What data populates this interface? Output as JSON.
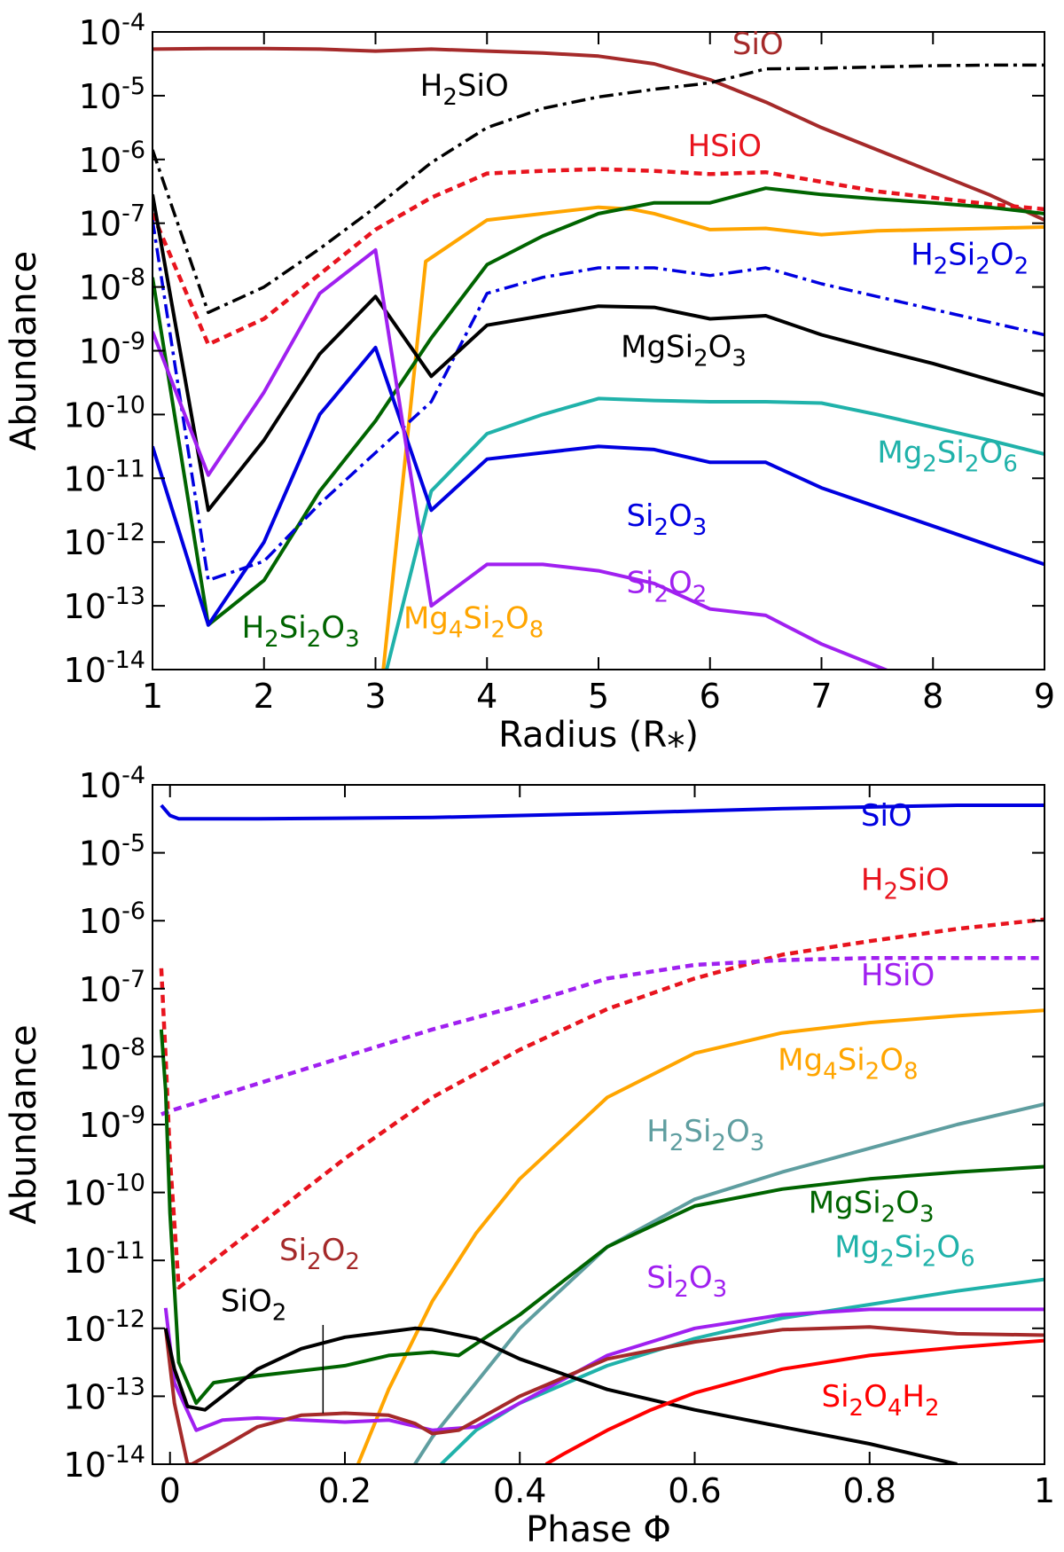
{
  "chart_data": [
    {
      "type": "line",
      "title": "",
      "xlabel": "Radius (R⁎)",
      "ylabel": "Abundance",
      "xlim": [
        1,
        9
      ],
      "ylim_log10": [
        -14,
        -4
      ],
      "yscale": "log",
      "grid": false,
      "x_ticks": [
        "1",
        "2",
        "3",
        "4",
        "5",
        "6",
        "7",
        "8",
        "9"
      ],
      "y_ticks": [
        {
          "base": "10",
          "exp": "-4"
        },
        {
          "base": "10",
          "exp": "-5"
        },
        {
          "base": "10",
          "exp": "-6"
        },
        {
          "base": "10",
          "exp": "-7"
        },
        {
          "base": "10",
          "exp": "-8"
        },
        {
          "base": "10",
          "exp": "-9"
        },
        {
          "base": "10",
          "exp": "-10"
        },
        {
          "base": "10",
          "exp": "-11"
        },
        {
          "base": "10",
          "exp": "-12"
        },
        {
          "base": "10",
          "exp": "-13"
        },
        {
          "base": "10",
          "exp": "-14"
        }
      ],
      "series": [
        {
          "name": "SiO",
          "color": "#a52a2a",
          "style": "solid",
          "x": [
            1,
            1.5,
            2,
            2.5,
            3,
            3.5,
            4,
            4.5,
            5,
            5.5,
            6,
            6.5,
            7,
            7.5,
            8,
            8.5,
            9
          ],
          "log_y": [
            -4.27,
            -4.26,
            -4.26,
            -4.27,
            -4.3,
            -4.27,
            -4.3,
            -4.33,
            -4.38,
            -4.5,
            -4.75,
            -5.1,
            -5.5,
            -5.85,
            -6.2,
            -6.55,
            -6.95
          ]
        },
        {
          "name": "H2SiO",
          "color": "#000000",
          "style": "dashdot",
          "x": [
            1,
            1.5,
            2,
            2.5,
            3,
            3.5,
            4,
            4.5,
            5,
            5.5,
            6,
            6.5,
            7,
            7.5,
            8,
            8.5,
            9
          ],
          "log_y": [
            -5.85,
            -8.4,
            -8.0,
            -7.4,
            -6.75,
            -6.05,
            -5.5,
            -5.2,
            -5.02,
            -4.9,
            -4.8,
            -4.58,
            -4.57,
            -4.55,
            -4.53,
            -4.52,
            -4.52
          ]
        },
        {
          "name": "HSiO",
          "color": "#e8141e",
          "style": "dotted",
          "x": [
            1,
            1.5,
            2,
            2.5,
            3,
            3.5,
            4,
            4.5,
            5,
            5.5,
            6,
            6.5,
            7,
            7.5,
            8,
            8.5,
            9
          ],
          "log_y": [
            -6.85,
            -8.9,
            -8.5,
            -7.8,
            -7.1,
            -6.6,
            -6.22,
            -6.18,
            -6.15,
            -6.18,
            -6.23,
            -6.2,
            -6.35,
            -6.5,
            -6.6,
            -6.7,
            -6.78
          ]
        },
        {
          "name": "Mg4Si2O8",
          "color": "#ffa500",
          "style": "solid",
          "x": [
            3.07,
            3.45,
            4,
            4.5,
            5,
            5.3,
            5.5,
            6,
            6.5,
            7,
            7.5,
            8,
            8.5,
            9
          ],
          "log_y": [
            -14,
            -7.6,
            -6.95,
            -6.85,
            -6.75,
            -6.78,
            -6.85,
            -7.1,
            -7.08,
            -7.18,
            -7.12,
            -7.1,
            -7.08,
            -7.06
          ]
        },
        {
          "name": "H2Si2O3",
          "color": "#006400",
          "style": "solid",
          "x": [
            1,
            1.5,
            2,
            2.5,
            3,
            3.5,
            4,
            4.5,
            5,
            5.5,
            6,
            6.5,
            7,
            7.5,
            8,
            8.5,
            9
          ],
          "log_y": [
            -7.85,
            -13.3,
            -12.6,
            -11.2,
            -10.1,
            -8.8,
            -7.65,
            -7.2,
            -6.85,
            -6.68,
            -6.68,
            -6.45,
            -6.55,
            -6.62,
            -6.68,
            -6.75,
            -6.85
          ]
        },
        {
          "name": "H2Si2O2",
          "color": "#0000e0",
          "style": "dashdot",
          "x": [
            1,
            1.5,
            2,
            2.5,
            3,
            3.5,
            4,
            4.5,
            5,
            5.5,
            6,
            6.5,
            7,
            7.5,
            8,
            8.5,
            9
          ],
          "log_y": [
            -6.95,
            -12.6,
            -12.3,
            -11.4,
            -10.6,
            -9.8,
            -8.1,
            -7.85,
            -7.7,
            -7.7,
            -7.82,
            -7.7,
            -7.95,
            -8.15,
            -8.35,
            -8.55,
            -8.75
          ]
        },
        {
          "name": "MgSi2O3",
          "color": "#000000",
          "style": "solid",
          "x": [
            1,
            1.5,
            2,
            2.5,
            3,
            3.5,
            4,
            4.5,
            5,
            5.5,
            6,
            6.5,
            7,
            7.5,
            8,
            8.5,
            9
          ],
          "log_y": [
            -6.55,
            -11.5,
            -10.4,
            -9.05,
            -8.15,
            -9.4,
            -8.6,
            -8.45,
            -8.3,
            -8.32,
            -8.5,
            -8.45,
            -8.75,
            -8.98,
            -9.2,
            -9.45,
            -9.7
          ]
        },
        {
          "name": "Mg2Si2O6",
          "color": "#20b2aa",
          "style": "solid",
          "x": [
            3.1,
            3.5,
            4,
            4.5,
            5,
            5.5,
            6,
            6.5,
            7,
            7.5,
            8,
            8.5,
            9
          ],
          "log_y": [
            -14,
            -11.2,
            -10.3,
            -10.0,
            -9.75,
            -9.78,
            -9.8,
            -9.8,
            -9.82,
            -10.0,
            -10.2,
            -10.4,
            -10.62
          ]
        },
        {
          "name": "Si2O3",
          "color": "#0000e0",
          "style": "solid",
          "x": [
            1,
            1.5,
            2,
            2.5,
            3,
            3.5,
            4,
            4.5,
            5,
            5.5,
            6,
            6.5,
            7,
            7.5,
            8,
            8.5,
            9
          ],
          "log_y": [
            -10.5,
            -13.3,
            -12.0,
            -10.0,
            -8.95,
            -11.5,
            -10.7,
            -10.6,
            -10.5,
            -10.55,
            -10.75,
            -10.75,
            -11.15,
            -11.45,
            -11.75,
            -12.05,
            -12.35
          ]
        },
        {
          "name": "Si2O2",
          "color": "#a020f0",
          "style": "solid",
          "x": [
            1,
            1.5,
            2,
            2.5,
            3,
            3.5,
            4,
            4.5,
            5,
            5.5,
            6,
            6.5,
            7,
            7.5,
            8,
            8.5,
            8.6
          ],
          "log_y": [
            -8.7,
            -10.95,
            -9.65,
            -8.1,
            -7.42,
            -13.0,
            -12.35,
            -12.35,
            -12.45,
            -12.65,
            -13.05,
            -13.15,
            -13.6,
            -13.95,
            -14.3,
            -14.65,
            -14.75
          ]
        }
      ],
      "annotations": [
        {
          "text": "SiO",
          "color": "#a52a2a",
          "x": 6.2,
          "log_y": -4.35
        },
        {
          "text": "H2SiO",
          "color": "#000000",
          "x": 3.4,
          "log_y": -5.0
        },
        {
          "text": "HSiO",
          "color": "#e8141e",
          "x": 5.8,
          "log_y": -5.95
        },
        {
          "text": "H2Si2O2",
          "color": "#0000e0",
          "x": 7.8,
          "log_y": -7.65
        },
        {
          "text": "MgSi2O3",
          "color": "#000000",
          "x": 5.2,
          "log_y": -9.1
        },
        {
          "text": "Mg2Si2O6",
          "color": "#20b2aa",
          "x": 7.5,
          "log_y": -10.75
        },
        {
          "text": "Si2O3",
          "color": "#0000e0",
          "x": 5.25,
          "log_y": -11.75
        },
        {
          "text": "Si2O2",
          "color": "#a020f0",
          "x": 5.25,
          "log_y": -12.8
        },
        {
          "text": "H2Si2O3",
          "color": "#006400",
          "x": 1.8,
          "log_y": -13.5
        },
        {
          "text": "Mg4Si2O8",
          "color": "#ffa500",
          "x": 3.25,
          "log_y": -13.35
        }
      ]
    },
    {
      "type": "line",
      "title": "",
      "xlabel": "Phase Φ",
      "ylabel": "Abundance",
      "xlim": [
        -0.02,
        1
      ],
      "ylim_log10": [
        -14,
        -4
      ],
      "yscale": "log",
      "grid": false,
      "x_ticks": [
        "0",
        "0.2",
        "0.4",
        "0.6",
        "0.8",
        "1"
      ],
      "y_ticks": [
        {
          "base": "10",
          "exp": "-4"
        },
        {
          "base": "10",
          "exp": "-5"
        },
        {
          "base": "10",
          "exp": "-6"
        },
        {
          "base": "10",
          "exp": "-7"
        },
        {
          "base": "10",
          "exp": "-8"
        },
        {
          "base": "10",
          "exp": "-9"
        },
        {
          "base": "10",
          "exp": "-10"
        },
        {
          "base": "10",
          "exp": "-11"
        },
        {
          "base": "10",
          "exp": "-12"
        },
        {
          "base": "10",
          "exp": "-13"
        },
        {
          "base": "10",
          "exp": "-14"
        }
      ],
      "series": [
        {
          "name": "SiO",
          "color": "#0000e0",
          "style": "solid",
          "x": [
            -0.01,
            0,
            0.01,
            0.1,
            0.3,
            0.5,
            0.7,
            0.9,
            1.0
          ],
          "log_y": [
            -4.3,
            -4.45,
            -4.5,
            -4.5,
            -4.48,
            -4.42,
            -4.35,
            -4.3,
            -4.3
          ]
        },
        {
          "name": "H2SiO",
          "color": "#e8141e",
          "style": "dotted",
          "x": [
            -0.01,
            -0.005,
            0,
            0.01,
            0.05,
            0.1,
            0.2,
            0.3,
            0.4,
            0.5,
            0.6,
            0.7,
            0.8,
            0.9,
            1.0
          ],
          "log_y": [
            -6.7,
            -8.0,
            -9.5,
            -11.4,
            -11.0,
            -10.5,
            -9.5,
            -8.6,
            -7.9,
            -7.3,
            -6.85,
            -6.5,
            -6.3,
            -6.12,
            -5.98
          ]
        },
        {
          "name": "HSiO",
          "color": "#a020f0",
          "style": "dotted",
          "x": [
            -0.01,
            0,
            0.1,
            0.2,
            0.3,
            0.4,
            0.5,
            0.6,
            0.7,
            0.8,
            0.9,
            1.0
          ],
          "log_y": [
            -8.85,
            -8.8,
            -8.4,
            -8.0,
            -7.6,
            -7.25,
            -6.85,
            -6.65,
            -6.58,
            -6.55,
            -6.55,
            -6.55
          ]
        },
        {
          "name": "Mg4Si2O8",
          "color": "#ffa500",
          "style": "solid",
          "x": [
            0.215,
            0.25,
            0.3,
            0.35,
            0.4,
            0.5,
            0.6,
            0.7,
            0.8,
            0.9,
            1.0
          ],
          "log_y": [
            -14,
            -12.9,
            -11.6,
            -10.6,
            -9.8,
            -8.6,
            -7.95,
            -7.65,
            -7.5,
            -7.4,
            -7.32
          ]
        },
        {
          "name": "H2Si2O3",
          "color": "#5f9ea0",
          "style": "solid",
          "x": [
            0.28,
            0.3,
            0.35,
            0.4,
            0.5,
            0.6,
            0.7,
            0.8,
            0.9,
            1.0
          ],
          "log_y": [
            -14,
            -13.6,
            -12.8,
            -12.0,
            -10.8,
            -10.1,
            -9.7,
            -9.35,
            -9.0,
            -8.7
          ]
        },
        {
          "name": "MgSi2O3",
          "color": "#006400",
          "style": "solid",
          "x": [
            -0.01,
            -0.005,
            0,
            0.01,
            0.03,
            0.05,
            0.1,
            0.2,
            0.25,
            0.3,
            0.33,
            0.4,
            0.5,
            0.6,
            0.7,
            0.8,
            0.9,
            1.0
          ],
          "log_y": [
            -7.6,
            -8.5,
            -10.3,
            -12.5,
            -13.1,
            -12.8,
            -12.7,
            -12.55,
            -12.4,
            -12.35,
            -12.4,
            -11.8,
            -10.8,
            -10.2,
            -9.95,
            -9.8,
            -9.7,
            -9.62
          ]
        },
        {
          "name": "Mg2Si2O6",
          "color": "#20b2aa",
          "style": "solid",
          "x": [
            0.31,
            0.35,
            0.4,
            0.5,
            0.6,
            0.7,
            0.8,
            0.9,
            1.0
          ],
          "log_y": [
            -14,
            -13.5,
            -13.1,
            -12.55,
            -12.15,
            -11.85,
            -11.65,
            -11.45,
            -11.28
          ]
        },
        {
          "name": "Si2O3",
          "color": "#a020f0",
          "style": "solid",
          "x": [
            -0.005,
            0.005,
            0.03,
            0.06,
            0.1,
            0.2,
            0.25,
            0.3,
            0.35,
            0.4,
            0.5,
            0.6,
            0.7,
            0.8,
            0.9,
            1.0
          ],
          "log_y": [
            -11.7,
            -12.8,
            -13.5,
            -13.35,
            -13.32,
            -13.38,
            -13.35,
            -13.5,
            -13.45,
            -13.1,
            -12.4,
            -12.0,
            -11.8,
            -11.72,
            -11.72,
            -11.72
          ]
        },
        {
          "name": "Si2O2",
          "color": "#a52a2a",
          "style": "solid",
          "x": [
            -0.005,
            0.005,
            0.02,
            0.025,
            0.06,
            0.1,
            0.15,
            0.2,
            0.25,
            0.28,
            0.3,
            0.33,
            0.4,
            0.5,
            0.6,
            0.7,
            0.8,
            0.9,
            1.0
          ],
          "log_y": [
            -12.0,
            -13.1,
            -14.0,
            -14.0,
            -13.75,
            -13.45,
            -13.28,
            -13.25,
            -13.28,
            -13.4,
            -13.55,
            -13.5,
            -13.0,
            -12.45,
            -12.2,
            -12.02,
            -11.98,
            -12.08,
            -12.1
          ]
        },
        {
          "name": "SiO2",
          "color": "#000000",
          "style": "solid",
          "x": [
            -0.005,
            0.005,
            0.02,
            0.04,
            0.07,
            0.1,
            0.15,
            0.2,
            0.25,
            0.28,
            0.3,
            0.35,
            0.4,
            0.5,
            0.6,
            0.7,
            0.8,
            0.9
          ],
          "log_y": [
            -12.0,
            -12.6,
            -13.15,
            -13.2,
            -12.9,
            -12.6,
            -12.3,
            -12.13,
            -12.05,
            -12.0,
            -12.02,
            -12.15,
            -12.45,
            -12.9,
            -13.2,
            -13.45,
            -13.7,
            -14.0
          ]
        },
        {
          "name": "Si2O4H2",
          "color": "#ff0000",
          "style": "solid",
          "x": [
            0.43,
            0.45,
            0.5,
            0.55,
            0.6,
            0.7,
            0.8,
            0.9,
            1.0
          ],
          "log_y": [
            -14,
            -13.85,
            -13.5,
            -13.2,
            -12.95,
            -12.6,
            -12.4,
            -12.28,
            -12.18
          ]
        }
      ],
      "annotations": [
        {
          "text": "SiO",
          "color": "#0000e0",
          "x": 0.79,
          "log_y": -4.6
        },
        {
          "text": "H2SiO",
          "color": "#e8141e",
          "x": 0.79,
          "log_y": -5.55
        },
        {
          "text": "HSiO",
          "color": "#a020f0",
          "x": 0.79,
          "log_y": -6.95
        },
        {
          "text": "Mg4Si2O8",
          "color": "#ffa500",
          "x": 0.695,
          "log_y": -8.2
        },
        {
          "text": "H2Si2O3",
          "color": "#5f9ea0",
          "x": 0.545,
          "log_y": -9.25
        },
        {
          "text": "MgSi2O3",
          "color": "#006400",
          "x": 0.73,
          "log_y": -10.3
        },
        {
          "text": "Mg2Si2O6",
          "color": "#20b2aa",
          "x": 0.76,
          "log_y": -10.95
        },
        {
          "text": "Si2O3",
          "color": "#a020f0",
          "x": 0.545,
          "log_y": -11.4
        },
        {
          "text": "Si2O2",
          "color": "#a52a2a",
          "x": 0.125,
          "log_y": -11.0
        },
        {
          "text": "SiO2",
          "color": "#000000",
          "x": 0.058,
          "log_y": -11.75
        },
        {
          "text": "Si2O4H2",
          "color": "#ff0000",
          "x": 0.745,
          "log_y": -13.15
        }
      ],
      "pointer": {
        "x": 0.175,
        "log_y_top": -11.95,
        "log_y_bottom": -13.25
      }
    }
  ]
}
